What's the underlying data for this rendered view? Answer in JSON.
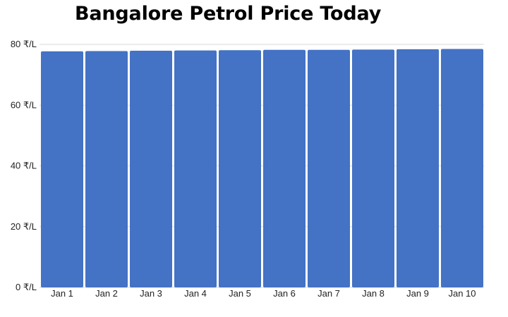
{
  "chart_data": {
    "type": "bar",
    "title": "Bangalore Petrol Price Today",
    "xlabel": "",
    "ylabel": "",
    "categories": [
      "Jan 1",
      "Jan 2",
      "Jan 3",
      "Jan 4",
      "Jan 5",
      "Jan 6",
      "Jan 7",
      "Jan 8",
      "Jan 9",
      "Jan 10"
    ],
    "values": [
      77.7,
      77.8,
      77.9,
      78.0,
      78.1,
      78.2,
      78.2,
      78.3,
      78.4,
      78.5
    ],
    "ylim": [
      0,
      80
    ],
    "yticks": [
      0,
      20,
      40,
      60,
      80
    ],
    "ytick_labels": [
      "0 ₹/L",
      "20 ₹/L",
      "40 ₹/L",
      "60 ₹/L",
      "80 ₹/L"
    ],
    "grid": true,
    "legend": "none",
    "bar_color": "#4472C4",
    "grid_color": "#d9d9d9"
  }
}
